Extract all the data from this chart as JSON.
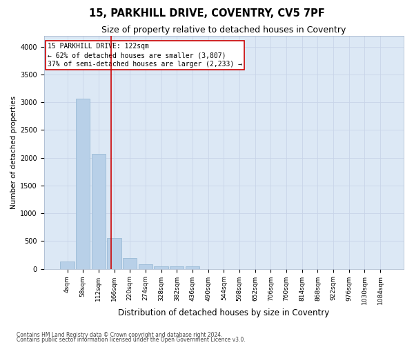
{
  "title": "15, PARKHILL DRIVE, COVENTRY, CV5 7PF",
  "subtitle": "Size of property relative to detached houses in Coventry",
  "xlabel": "Distribution of detached houses by size in Coventry",
  "ylabel": "Number of detached properties",
  "bar_labels": [
    "4sqm",
    "58sqm",
    "112sqm",
    "166sqm",
    "220sqm",
    "274sqm",
    "328sqm",
    "382sqm",
    "436sqm",
    "490sqm",
    "544sqm",
    "598sqm",
    "652sqm",
    "706sqm",
    "760sqm",
    "814sqm",
    "868sqm",
    "922sqm",
    "976sqm",
    "1030sqm",
    "1084sqm"
  ],
  "bar_values": [
    130,
    3060,
    2070,
    560,
    195,
    80,
    50,
    40,
    40,
    0,
    0,
    0,
    0,
    0,
    0,
    0,
    0,
    0,
    0,
    0,
    0
  ],
  "bar_color": "#b8d0e8",
  "bar_edge_color": "#90b4d0",
  "vline_position": 2.82,
  "vline_color": "#cc0000",
  "annotation_text": "15 PARKHILL DRIVE: 122sqm\n← 62% of detached houses are smaller (3,807)\n37% of semi-detached houses are larger (2,233) →",
  "annotation_box_color": "#ffffff",
  "annotation_box_edge": "#cc0000",
  "annotation_fontsize": 7.0,
  "ylim": [
    0,
    4200
  ],
  "yticks": [
    0,
    500,
    1000,
    1500,
    2000,
    2500,
    3000,
    3500,
    4000
  ],
  "grid_color": "#c8d4e8",
  "bg_color": "#dce8f5",
  "footer_line1": "Contains HM Land Registry data © Crown copyright and database right 2024.",
  "footer_line2": "Contains public sector information licensed under the Open Government Licence v3.0.",
  "title_fontsize": 10.5,
  "subtitle_fontsize": 9.0,
  "ylabel_fontsize": 7.5,
  "xlabel_fontsize": 8.5,
  "tick_fontsize": 6.5,
  "ytick_fontsize": 7.0
}
